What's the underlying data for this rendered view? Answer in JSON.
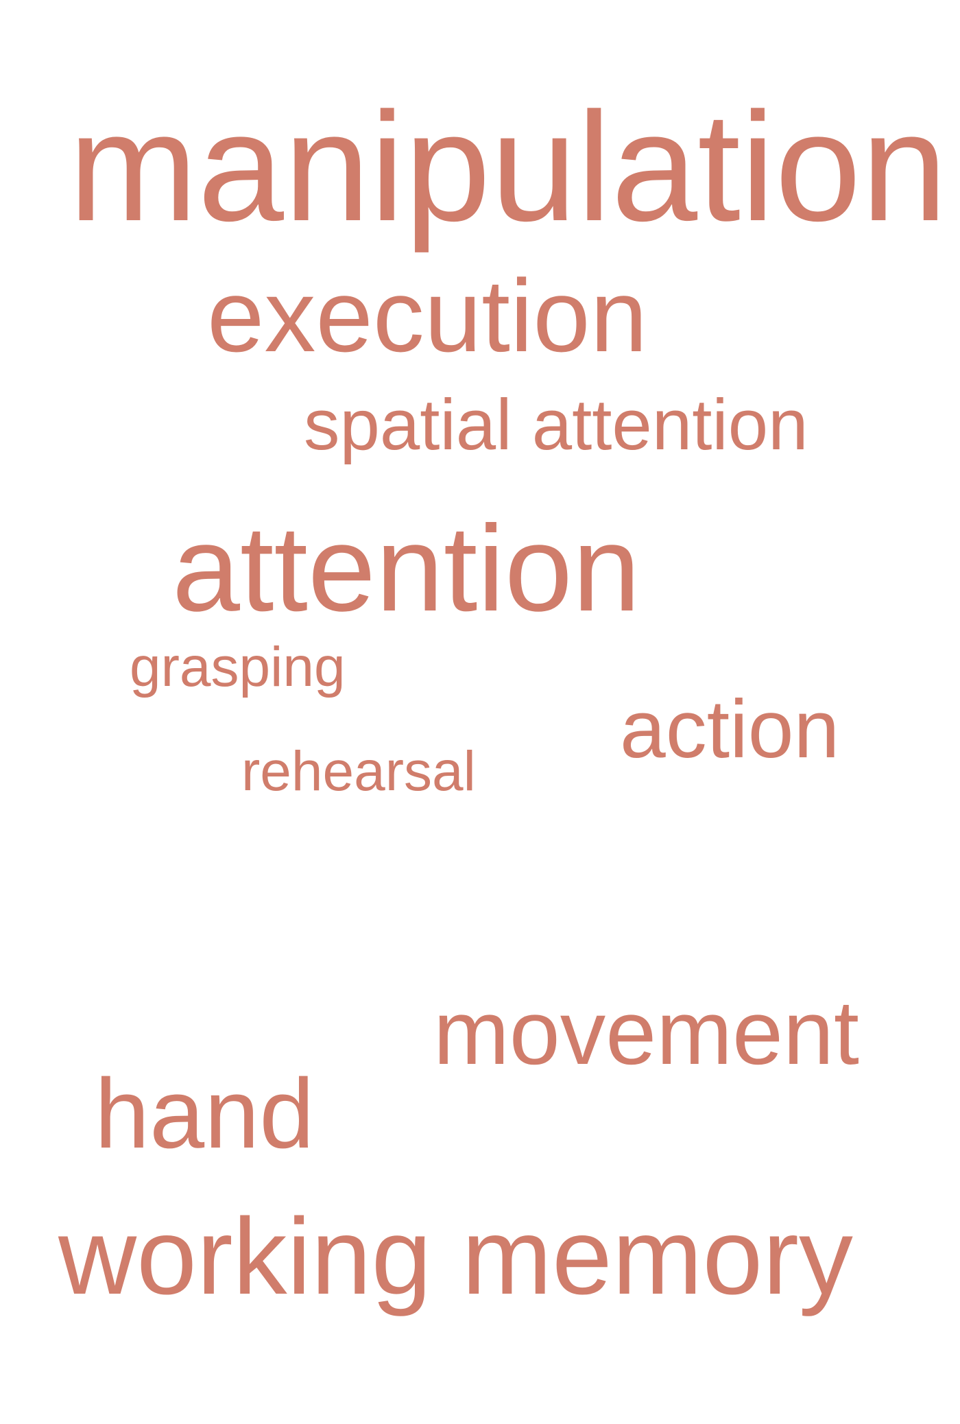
{
  "word_cloud": {
    "color": "#d07d6b",
    "words": [
      {
        "text": "manipulation"
      },
      {
        "text": "execution"
      },
      {
        "text": "spatial attention"
      },
      {
        "text": "attention"
      },
      {
        "text": "grasping"
      },
      {
        "text": "action"
      },
      {
        "text": "rehearsal"
      },
      {
        "text": "movement"
      },
      {
        "text": "hand"
      },
      {
        "text": "working memory"
      }
    ]
  }
}
